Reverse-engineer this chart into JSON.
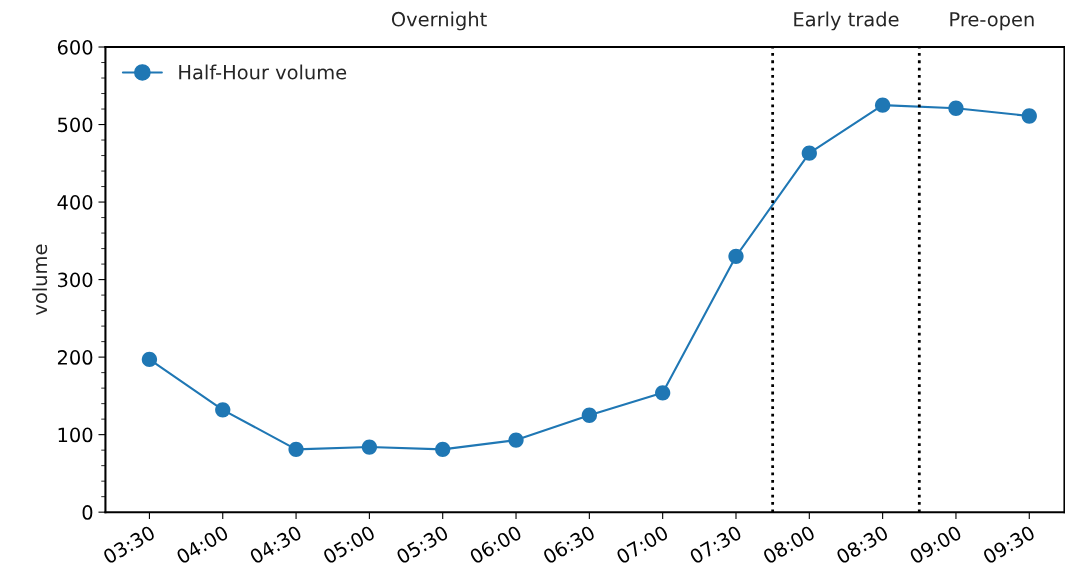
{
  "chart_data": {
    "type": "line",
    "ylabel": "volume",
    "x": [
      3.5,
      4.0,
      4.5,
      5.0,
      5.5,
      6.0,
      6.5,
      7.0,
      7.5,
      8.0,
      8.5,
      9.0,
      9.5
    ],
    "series": [
      {
        "name": "Half-Hour volume",
        "color": "#1f77b4",
        "values": [
          197,
          132,
          81,
          84,
          81,
          93,
          125,
          154,
          330,
          463,
          525,
          521,
          511
        ]
      }
    ],
    "xlim": [
      3.2,
      9.74
    ],
    "xticks": [
      {
        "value": 3.5,
        "label": "03:30"
      },
      {
        "value": 4.0,
        "label": "04:00"
      },
      {
        "value": 4.5,
        "label": "04:30"
      },
      {
        "value": 5.0,
        "label": "05:00"
      },
      {
        "value": 5.5,
        "label": "05:30"
      },
      {
        "value": 6.0,
        "label": "06:00"
      },
      {
        "value": 6.5,
        "label": "06:30"
      },
      {
        "value": 7.0,
        "label": "07:00"
      },
      {
        "value": 7.5,
        "label": "07:30"
      },
      {
        "value": 8.0,
        "label": "08:00"
      },
      {
        "value": 8.5,
        "label": "08:30"
      },
      {
        "value": 9.0,
        "label": "09:00"
      },
      {
        "value": 9.5,
        "label": "09:30"
      }
    ],
    "ylim": [
      0,
      600
    ],
    "yticks": [
      0,
      100,
      200,
      300,
      400,
      500,
      600
    ],
    "ref_lines": [
      {
        "axis": "x",
        "value": 7.75,
        "color": "#000000",
        "line_style": "dotted"
      },
      {
        "axis": "x",
        "value": 8.75,
        "color": "#000000",
        "line_style": "dotted"
      }
    ],
    "annotations": [
      "Overnight",
      "Early trade",
      "Pre-open"
    ],
    "marker": "circle",
    "line_style": "solid",
    "legend": "top left",
    "grid": false
  }
}
